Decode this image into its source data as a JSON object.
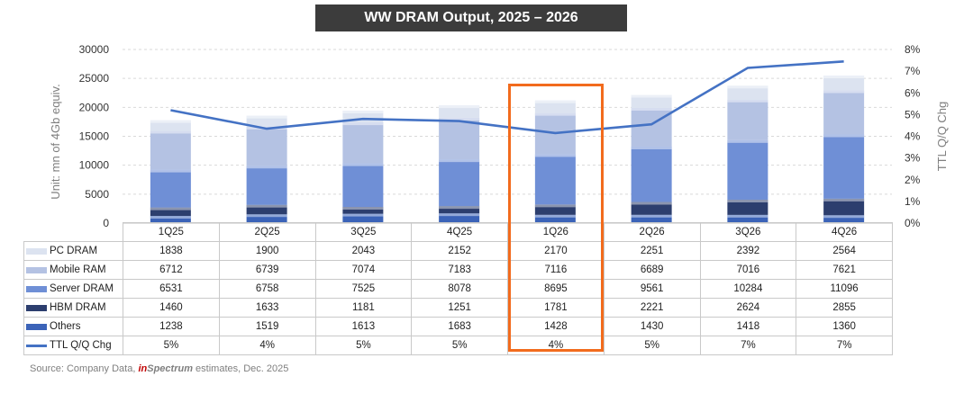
{
  "chart_data": {
    "type": "bar",
    "stacked": true,
    "title": "WW DRAM Output, 2025 – 2026",
    "ylabel": "Unit: mn of 4Gb equiv.",
    "y2label": "TTL Q/Q Chg",
    "ylim": [
      0,
      30000
    ],
    "yticks": [
      "0",
      "5000",
      "10000",
      "15000",
      "20000",
      "25000",
      "30000"
    ],
    "y2lim": [
      0,
      8
    ],
    "y2ticks": [
      "0%",
      "1%",
      "2%",
      "3%",
      "4%",
      "5%",
      "6%",
      "7%",
      "8%"
    ],
    "categories": [
      "1Q25",
      "2Q25",
      "3Q25",
      "4Q25",
      "1Q26",
      "2Q26",
      "3Q26",
      "4Q26"
    ],
    "grid": true,
    "series": [
      {
        "name": "PC DRAM",
        "color": "#dce3f0",
        "values": [
          1838,
          1900,
          2043,
          2152,
          2170,
          2251,
          2392,
          2564
        ]
      },
      {
        "name": "Mobile RAM",
        "color": "#b4c2e3",
        "values": [
          6712,
          6739,
          7074,
          7183,
          7116,
          6689,
          7016,
          7621
        ]
      },
      {
        "name": "Server DRAM",
        "color": "#6f8fd6",
        "values": [
          6531,
          6758,
          7525,
          8078,
          8695,
          9561,
          10284,
          11096
        ]
      },
      {
        "name": "HBM DRAM",
        "color": "#2c3e6e",
        "values": [
          1460,
          1633,
          1181,
          1251,
          1781,
          2221,
          2624,
          2855
        ]
      },
      {
        "name": "Others",
        "color": "#3b63b8",
        "values": [
          1238,
          1519,
          1613,
          1683,
          1428,
          1430,
          1418,
          1360
        ]
      }
    ],
    "line_series": {
      "name": "TTL Q/Q Chg",
      "color": "#4472c4",
      "axis": "right",
      "values": [
        5.2,
        4.35,
        4.8,
        4.7,
        4.15,
        4.55,
        7.15,
        7.45
      ],
      "labels": [
        "5%",
        "4%",
        "5%",
        "5%",
        "4%",
        "5%",
        "7%",
        "7%"
      ]
    },
    "highlight_category": "1Q26",
    "highlight_color": "#f26b1d"
  },
  "source": {
    "prefix": "Source: Company Data, ",
    "brand_in": "in",
    "brand_rest": "Spectrum",
    "suffix": " estimates, Dec. 2025"
  }
}
